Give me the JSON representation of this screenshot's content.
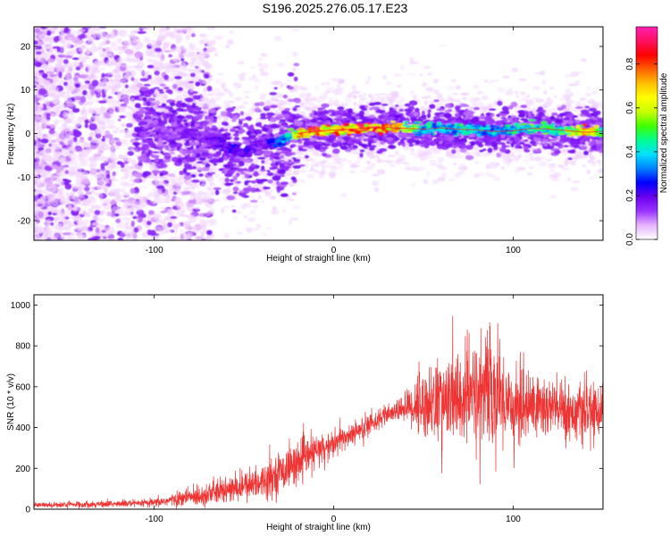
{
  "chart_data": [
    {
      "type": "heatmap",
      "title": "S196.2025.276.05.17.E23",
      "xlabel": "Height of straight line (km)",
      "ylabel": "Frequency (Hz)",
      "xlim": [
        -167,
        150
      ],
      "ylim": [
        -24.5,
        24.5
      ],
      "x_ticks": [
        -100,
        0,
        100
      ],
      "y_ticks": [
        -20,
        -10,
        0,
        10,
        20
      ],
      "colorbar": {
        "label": "Normalized spectral amplitude",
        "range": [
          0.0,
          0.97
        ],
        "ticks": [
          0.0,
          0.2,
          0.4,
          0.6,
          0.8
        ],
        "tick_labels": [
          "0.0",
          "0.2",
          "0.4",
          "0.6",
          "0.8"
        ],
        "colors": [
          "#ffffff",
          "#e6b3ff",
          "#9933ff",
          "#6a00f0",
          "#0000ff",
          "#0080ff",
          "#00e0ff",
          "#00ff90",
          "#40ff00",
          "#c8ff00",
          "#ffff00",
          "#ffc000",
          "#ff6000",
          "#ff0000",
          "#ff1060",
          "#ff20b0"
        ]
      },
      "ridge": {
        "x": [
          -90,
          -80,
          -70,
          -60,
          -50,
          -40,
          -30,
          -25,
          -20,
          -15,
          -10,
          0,
          10,
          20,
          30,
          40,
          50,
          60,
          70,
          80,
          90,
          100,
          110,
          120,
          130,
          140,
          150
        ],
        "y": [
          0.5,
          0.3,
          -1.0,
          -3.0,
          -4.5,
          -2.5,
          -2.0,
          -0.5,
          0.0,
          0.3,
          0.5,
          0.8,
          1.0,
          1.3,
          1.4,
          1.2,
          1.0,
          1.3,
          1.0,
          0.8,
          0.5,
          0.6,
          1.2,
          1.0,
          0.7,
          0.3,
          0.5
        ],
        "peak_amplitude": [
          0.15,
          0.2,
          0.2,
          0.25,
          0.25,
          0.2,
          0.35,
          0.5,
          0.8,
          0.95,
          0.95,
          0.9,
          0.95,
          0.95,
          0.95,
          0.7,
          0.5,
          0.45,
          0.5,
          0.45,
          0.45,
          0.5,
          0.55,
          0.55,
          0.6,
          0.9,
          0.5
        ]
      }
    },
    {
      "type": "line",
      "xlabel": "Height of straight line (km)",
      "ylabel": "SNR (10 * v/v)",
      "xlim": [
        -167,
        150
      ],
      "ylim": [
        0,
        1050
      ],
      "x_ticks": [
        -100,
        0,
        100
      ],
      "y_ticks": [
        0,
        200,
        400,
        600,
        800,
        1000
      ],
      "series": [
        {
          "name": "SNR",
          "color": "#ee3333",
          "x": [
            -167,
            -150,
            -130,
            -110,
            -100,
            -90,
            -80,
            -70,
            -60,
            -50,
            -40,
            -30,
            -20,
            -10,
            0,
            10,
            20,
            30,
            35,
            40,
            45,
            50,
            60,
            70,
            80,
            84,
            90,
            100,
            110,
            120,
            130,
            140,
            150
          ],
          "y": [
            20,
            22,
            25,
            28,
            30,
            45,
            60,
            75,
            90,
            110,
            140,
            180,
            230,
            280,
            320,
            370,
            420,
            460,
            480,
            500,
            510,
            520,
            530,
            540,
            560,
            600,
            560,
            520,
            510,
            500,
            480,
            470,
            480
          ],
          "spread": [
            10,
            12,
            14,
            16,
            18,
            25,
            40,
            50,
            55,
            60,
            70,
            80,
            80,
            70,
            60,
            50,
            45,
            40,
            40,
            60,
            120,
            150,
            170,
            200,
            230,
            260,
            220,
            170,
            150,
            140,
            120,
            110,
            100
          ]
        }
      ]
    }
  ]
}
